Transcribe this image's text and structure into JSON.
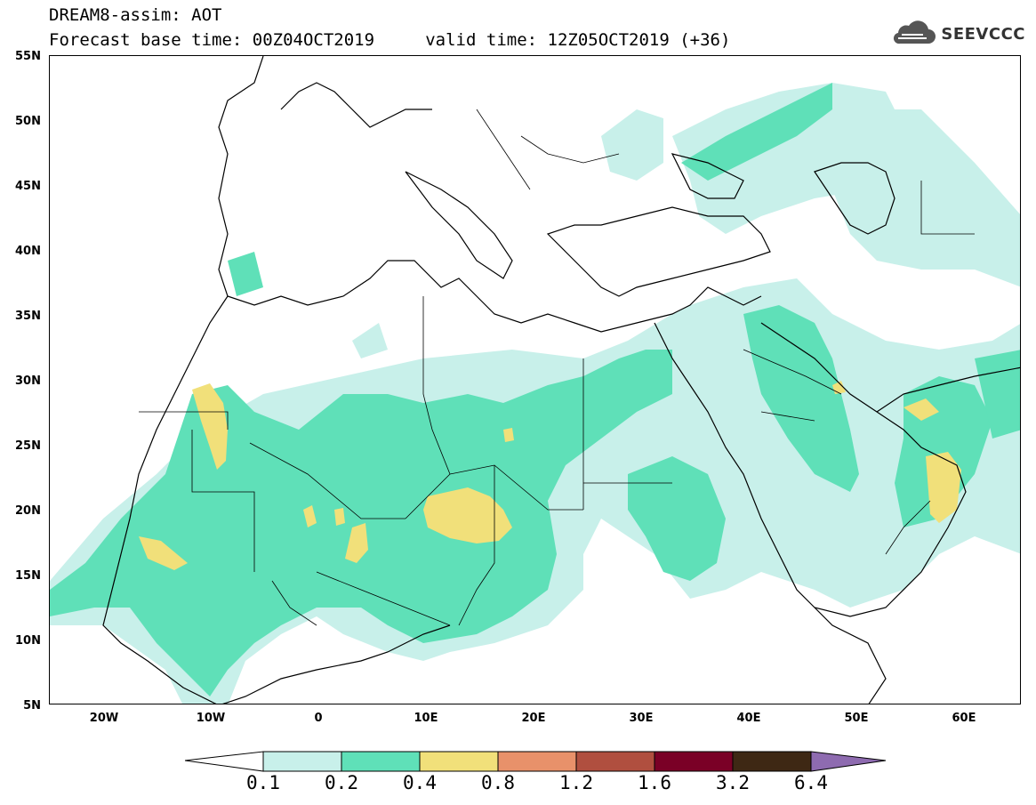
{
  "header": {
    "line1": "DREAM8-assim: AOT",
    "line2": "Forecast base time: 00Z04OCT2019     valid time: 12Z05OCT2019 (+36)"
  },
  "logo": {
    "text": "SEEVCCC",
    "icon": "cloud-icon"
  },
  "map": {
    "projection": "lat-lon",
    "lon_range": [
      -25,
      65
    ],
    "lat_range": [
      5,
      55
    ],
    "lat_labels": [
      "55N",
      "50N",
      "45N",
      "40N",
      "35N",
      "30N",
      "25N",
      "20N",
      "15N",
      "10N",
      "5N"
    ],
    "lon_labels": [
      "20W",
      "10W",
      "0",
      "10E",
      "20E",
      "30E",
      "40E",
      "50E",
      "60E"
    ]
  },
  "legend": {
    "thresholds": [
      "0.1",
      "0.2",
      "0.4",
      "0.8",
      "1.2",
      "1.6",
      "3.2",
      "6.4"
    ],
    "colors": [
      "#c8f0ea",
      "#5fe0b8",
      "#f1e07a",
      "#e8916a",
      "#b04f3f",
      "#7a0026",
      "#3e2814",
      "#8e6bb0"
    ]
  }
}
